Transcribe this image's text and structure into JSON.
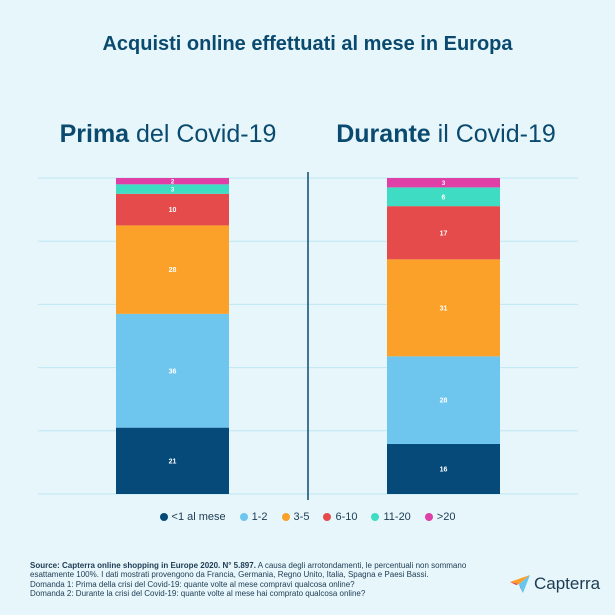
{
  "title": "Acquisti online effettuati al mese in Europa",
  "panels": [
    {
      "bold": "Prima",
      "rest": " del Covid-19"
    },
    {
      "bold": "Durante",
      "rest": " il Covid-19"
    }
  ],
  "chart_data": {
    "type": "bar",
    "stacked": true,
    "normalized_percent": true,
    "categories": [
      "Prima del Covid-19",
      "Durante il Covid-19"
    ],
    "series": [
      {
        "name": "<1 al mese",
        "color": "#064a7a",
        "values": [
          21,
          16
        ]
      },
      {
        "name": "1-2",
        "color": "#6ec6ee",
        "values": [
          36,
          28
        ]
      },
      {
        "name": "3-5",
        "color": "#fba12a",
        "values": [
          28,
          31
        ]
      },
      {
        "name": "6-10",
        "color": "#e54b4b",
        "values": [
          10,
          17
        ]
      },
      {
        "name": "11-20",
        "color": "#3ddcc3",
        "values": [
          3,
          6
        ]
      },
      {
        "name": ">20",
        "color": "#e03fa7",
        "values": [
          2,
          3
        ]
      }
    ],
    "grid": true,
    "legend_position": "bottom"
  },
  "footer": {
    "source_bold": "Source: Capterra online shopping in Europe 2020. N° 5.897.",
    "source_rest": " A causa degli arrotondamenti, le percentuali non sommano esattamente 100%. I dati mostrati provengono da Francia, Germania, Regno Unito, Italia, Spagna e Paesi Bassi.",
    "q1": "Domanda 1: Prima della crisi del Covid-19: quante volte al mese compravi qualcosa online?",
    "q2": "Domanda 2: Durante la crisi del Covid-19: quante volte al mese hai comprato qualcosa online?"
  },
  "logo": {
    "text": "Capterra",
    "colors": [
      "#ff9d28",
      "#68c5ed",
      "#044d80",
      "#e54747"
    ]
  }
}
